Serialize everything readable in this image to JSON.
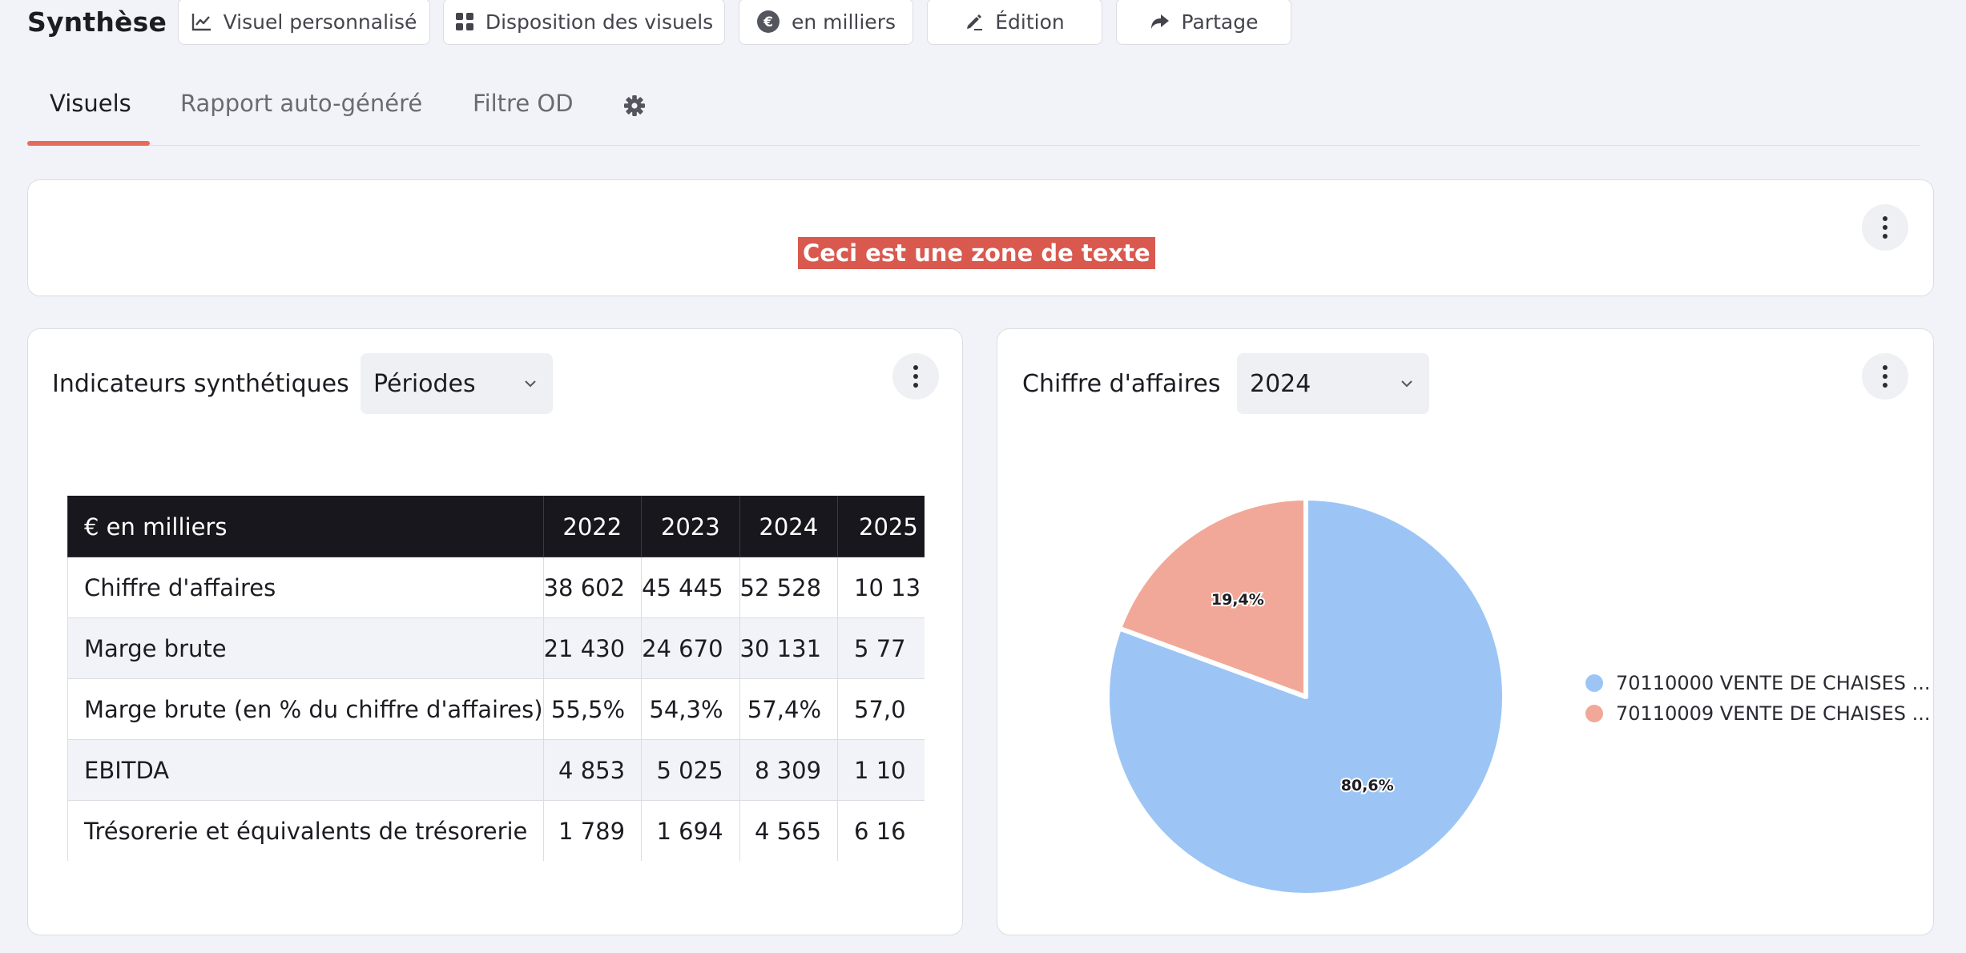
{
  "header": {
    "title": "Synthèse",
    "buttons": {
      "custom_visual": "Visuel personnalisé",
      "layout": "Disposition des visuels",
      "units": "en milliers",
      "edit": "Édition",
      "share": "Partage"
    }
  },
  "tabs": {
    "visuals": "Visuels",
    "auto_report": "Rapport auto-généré",
    "od_filter": "Filtre OD",
    "active": "Visuels",
    "settings_icon": "gear-icon"
  },
  "text_card": {
    "text": "Ceci est une zone de texte"
  },
  "indicators_card": {
    "title": "Indicateurs synthétiques",
    "select_value": "Périodes",
    "table": {
      "header": [
        "€ en milliers",
        "2022",
        "2023",
        "2024",
        "2025"
      ],
      "rows": [
        [
          "Chiffre d'affaires",
          "38 602",
          "45 445",
          "52 528",
          "10 13"
        ],
        [
          "Marge brute",
          "21 430",
          "24 670",
          "30 131",
          "5 77"
        ],
        [
          "Marge brute (en % du chiffre d'affaires)",
          "55,5%",
          "54,3%",
          "57,4%",
          "57,0"
        ],
        [
          "EBITDA",
          "4 853",
          "5 025",
          "8 309",
          "1 10"
        ],
        [
          "Trésorerie et équivalents de trésorerie",
          "1 789",
          "1 694",
          "4 565",
          "6 16"
        ]
      ]
    }
  },
  "revenue_card": {
    "title": "Chiffre d'affaires",
    "select_value": "2024",
    "chart_data": {
      "type": "pie",
      "slices": [
        {
          "name": "70110000 VENTE DE CHAISES ...",
          "value": 80.6,
          "label": "80,6%",
          "color": "#9cc5f5"
        },
        {
          "name": "70110009 VENTE DE CHAISES ...",
          "value": 19.4,
          "label": "19,4%",
          "color": "#f2a898"
        }
      ],
      "legend_position": "right"
    }
  },
  "colors": {
    "accent": "#e86a5a",
    "text_zone_bg": "#d9594f",
    "table_header_bg": "#17171d",
    "page_bg": "#f2f3f8"
  }
}
